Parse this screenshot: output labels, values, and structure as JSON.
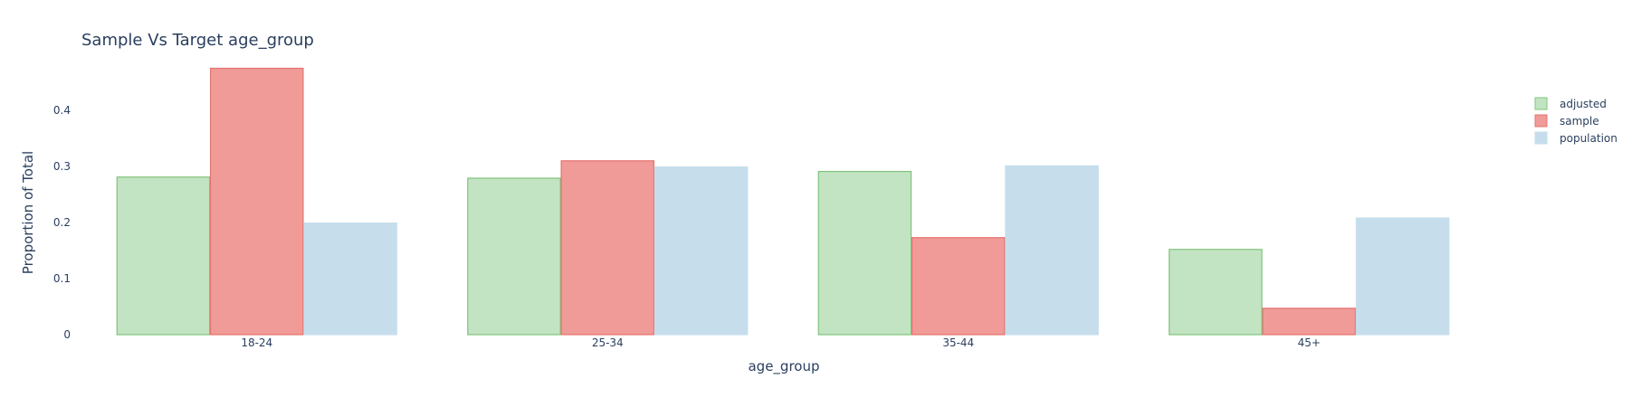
{
  "chart_data": {
    "type": "bar",
    "title": "Sample Vs Target age_group",
    "xlabel": "age_group",
    "ylabel": "Proportion of Total",
    "categories": [
      "18-24",
      "25-34",
      "35-44",
      "45+"
    ],
    "ylim": [
      0,
      0.5
    ],
    "yticks": [
      0,
      0.1,
      0.2,
      0.3,
      0.4
    ],
    "ytick_labels": [
      "0",
      "0.1",
      "0.2",
      "0.3",
      "0.4"
    ],
    "grid": false,
    "legend_position": "top-right",
    "series": [
      {
        "name": "adjusted",
        "values": [
          0.281,
          0.279,
          0.291,
          0.152
        ],
        "fill": "#c3e4c2",
        "stroke": "#7fc47c"
      },
      {
        "name": "sample",
        "values": [
          0.475,
          0.31,
          0.173,
          0.047
        ],
        "fill": "#f09b98",
        "stroke": "#e5736e"
      },
      {
        "name": "population",
        "values": [
          0.199,
          0.299,
          0.301,
          0.208
        ],
        "fill": "#c6deec",
        "stroke": "#c6deec"
      }
    ]
  }
}
